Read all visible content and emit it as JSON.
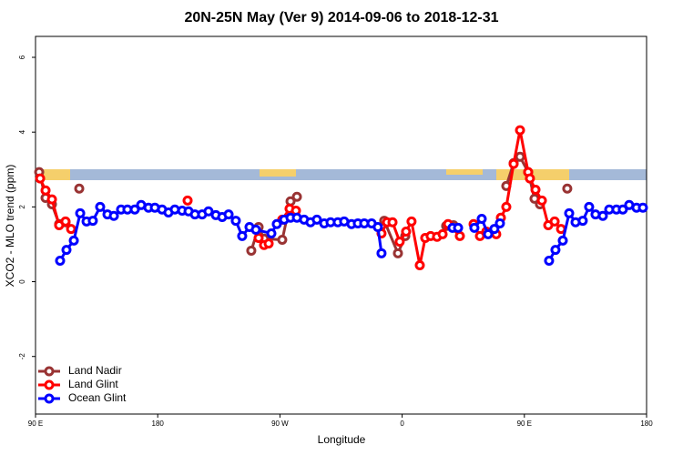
{
  "chart_data": {
    "type": "line",
    "title": "20N-25N May (Ver 9)   2014-09-06 to 2018-12-31",
    "x_label": "Longitude",
    "y_label": "XCO2 - MLO trend (ppm)",
    "xlim": [
      90,
      540
    ],
    "ylim": [
      -3.54,
      6.56
    ],
    "xticks": [
      {
        "value": 90,
        "label": "90 E"
      },
      180,
      {
        "value": 270,
        "label": "90 W"
      },
      {
        "value": 360,
        "label": "0"
      },
      {
        "value": 450,
        "label": "90 E"
      },
      {
        "value": 540,
        "label": "180"
      }
    ],
    "yticks": [
      -2,
      0,
      2,
      4,
      6
    ],
    "legend": "bottom-left",
    "series": [
      {
        "name": "Land Nadir",
        "color": "#993333",
        "x": [
          92.7,
          97.4,
          102.1,
          107.4,
          112.1,
          null,
          122.2,
          null,
          248.9,
          254.3,
          258.3,
          271.7,
          277.8,
          282.5,
          null,
          346.8,
          356.9,
          362.3,
          null,
          392.4,
          397.8,
          null,
          436.7,
          442.1,
          446.8,
          452.8,
          457.5,
          461.5,
          null,
          481.6
        ],
        "values": [
          2.93,
          2.24,
          2.07,
          1.54,
          1.59,
          null,
          2.49,
          null,
          0.83,
          1.46,
          1.15,
          1.12,
          2.15,
          2.27,
          null,
          1.63,
          0.76,
          1.22,
          null,
          1.49,
          1.51,
          null,
          2.56,
          3.17,
          3.34,
          2.93,
          2.22,
          2.07,
          null,
          2.49
        ]
      },
      {
        "name": "Land Glint",
        "color": "#ff0000",
        "x": [
          93.4,
          97.4,
          102.1,
          107.4,
          112.1,
          116.2,
          null,
          202.0,
          null,
          254.3,
          258.3,
          261.7,
          null,
          271.7,
          277.1,
          281.8,
          null,
          344.8,
          348.9,
          352.9,
          358.2,
          362.9,
          366.9,
          373.0,
          377.0,
          381.0,
          385.7,
          389.8,
          393.8,
          402.5,
          null,
          412.6,
          417.3,
          422.0,
          429.3,
          432.7,
          436.7,
          442.1,
          446.8,
          452.8,
          454.1,
          458.2,
          462.9,
          467.6,
          472.3,
          477.0
        ],
        "values": [
          2.76,
          2.44,
          2.2,
          1.51,
          1.61,
          1.41,
          null,
          2.17,
          null,
          1.17,
          0.98,
          1.02,
          null,
          1.66,
          1.95,
          1.9,
          null,
          1.29,
          1.59,
          1.59,
          1.07,
          1.34,
          1.61,
          0.44,
          1.17,
          1.22,
          1.2,
          1.27,
          1.54,
          1.22,
          null,
          1.54,
          1.22,
          1.34,
          1.27,
          1.71,
          2.0,
          3.15,
          4.05,
          2.93,
          2.76,
          2.46,
          2.17,
          1.51,
          1.61,
          1.41
        ]
      },
      {
        "name": "Ocean Glint",
        "color": "#0000ff",
        "x": [
          108.1,
          112.8,
          118.2,
          122.9,
          127.6,
          132.2,
          137.6,
          143.0,
          147.7,
          153.0,
          157.7,
          163.1,
          167.8,
          173.2,
          177.9,
          183.2,
          187.9,
          192.6,
          198.0,
          202.7,
          207.4,
          212.7,
          217.4,
          222.8,
          227.5,
          232.2,
          237.5,
          242.2,
          247.6,
          252.3,
          263.7,
          267.7,
          273.1,
          277.8,
          282.5,
          287.8,
          292.5,
          297.2,
          302.6,
          307.3,
          312.6,
          317.3,
          322.7,
          327.4,
          332.1,
          337.5,
          342.1,
          344.8,
          null,
          397.1,
          401.2,
          null,
          413.2,
          418.6,
          423.3,
          427.9,
          432.0,
          null,
          468.2,
          472.9,
          478.3,
          483.0,
          487.7,
          493.0,
          497.7,
          502.4,
          507.8,
          512.5,
          517.8,
          522.5,
          527.2,
          532.6,
          537.3
        ],
        "values": [
          0.56,
          0.85,
          1.1,
          1.83,
          1.61,
          1.63,
          2.0,
          1.8,
          1.76,
          1.93,
          1.93,
          1.93,
          2.05,
          1.98,
          1.98,
          1.93,
          1.85,
          1.93,
          1.9,
          1.88,
          1.8,
          1.8,
          1.88,
          1.78,
          1.73,
          1.8,
          1.63,
          1.22,
          1.46,
          1.39,
          1.29,
          1.54,
          1.66,
          1.71,
          1.71,
          1.66,
          1.59,
          1.66,
          1.56,
          1.59,
          1.59,
          1.61,
          1.54,
          1.56,
          1.56,
          1.56,
          1.46,
          0.76,
          null,
          1.44,
          1.44,
          null,
          1.44,
          1.68,
          1.27,
          1.41,
          1.56,
          null,
          0.56,
          0.85,
          1.1,
          1.83,
          1.59,
          1.63,
          2.0,
          1.8,
          1.76,
          1.93,
          1.93,
          1.93,
          2.05,
          1.98,
          1.98
        ]
      }
    ]
  }
}
